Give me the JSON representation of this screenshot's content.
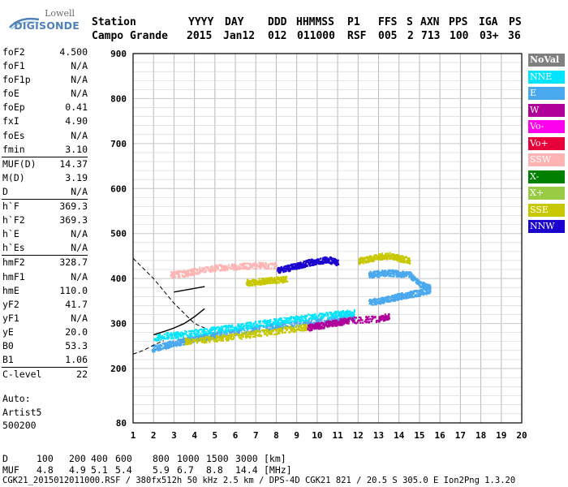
{
  "logo": {
    "line1": "Lowell",
    "line2": "DIGISONDE"
  },
  "header": {
    "labels": [
      "Station",
      "YYYY",
      "DAY",
      "DDD",
      "HHMMSS",
      "P1",
      "FFS",
      "S",
      "AXN",
      "PPS",
      "IGA",
      "PS"
    ],
    "values": [
      "Campo Grande",
      "2015",
      "Jan12",
      "012",
      "011000",
      "RSF",
      "005",
      "2",
      "713",
      "100",
      "03+",
      "36"
    ]
  },
  "params": [
    {
      "name": "foF2",
      "value": "4.500"
    },
    {
      "name": "foF1",
      "value": "N/A"
    },
    {
      "name": "foF1p",
      "value": "N/A"
    },
    {
      "name": "foE",
      "value": "N/A"
    },
    {
      "name": "foEp",
      "value": "0.41"
    },
    {
      "name": "fxI",
      "value": "4.90"
    },
    {
      "name": "foEs",
      "value": "N/A"
    },
    {
      "name": "fmin",
      "value": "3.10"
    },
    {
      "name": "MUF(D)",
      "value": "14.37"
    },
    {
      "name": "M(D)",
      "value": "3.19"
    },
    {
      "name": "D",
      "value": "N/A"
    },
    {
      "name": "h`F",
      "value": "369.3"
    },
    {
      "name": "h`F2",
      "value": "369.3"
    },
    {
      "name": "h`E",
      "value": "N/A"
    },
    {
      "name": "h`Es",
      "value": "N/A"
    },
    {
      "name": "hmF2",
      "value": "328.7"
    },
    {
      "name": "hmF1",
      "value": "N/A"
    },
    {
      "name": "hmE",
      "value": "110.0"
    },
    {
      "name": "yF2",
      "value": "41.7"
    },
    {
      "name": "yF1",
      "value": "N/A"
    },
    {
      "name": "yE",
      "value": "20.0"
    },
    {
      "name": "B0",
      "value": "53.3"
    },
    {
      "name": "B1",
      "value": "1.06"
    },
    {
      "name": "C-level",
      "value": "22"
    }
  ],
  "auto": {
    "line1": "Auto:",
    "line2": "Artist5",
    "line3": "500200"
  },
  "legend": [
    {
      "label": "NoVal",
      "color": "#808080"
    },
    {
      "label": "NNE",
      "color": "#00e5ff"
    },
    {
      "label": "E",
      "color": "#4aa8ee"
    },
    {
      "label": "W",
      "color": "#b0009a"
    },
    {
      "label": "Vo-",
      "color": "#ff00ee"
    },
    {
      "label": "Vo+",
      "color": "#e8003a"
    },
    {
      "label": "SSW",
      "color": "#ffb3b3"
    },
    {
      "label": "X-",
      "color": "#008000"
    },
    {
      "label": "X+",
      "color": "#99cc44"
    },
    {
      "label": "SSE",
      "color": "#c8c800"
    },
    {
      "label": "NNW",
      "color": "#1a00d0"
    }
  ],
  "footer": {
    "d_label": "D",
    "d_values": [
      "100",
      "200",
      "400",
      "600",
      "800",
      "1000",
      "1500",
      "3000"
    ],
    "d_unit": "[km]",
    "muf_label": "MUF",
    "muf_values": [
      "4.8",
      "4.9",
      "5.1",
      "5.4",
      "5.9",
      "6.7",
      "8.8",
      "14.4"
    ],
    "muf_unit": "[MHz]",
    "info": "CGK21_2015012011000.RSF / 380fx512h 50 kHz 2.5 km / DPS-4D CGK21 821 / 20.5 S 305.0 E Ion2Png 1.3.20"
  },
  "chart_data": {
    "type": "scatter",
    "xlim": [
      1,
      20
    ],
    "ylim": [
      80,
      900
    ],
    "x_ticks": [
      1,
      2,
      3,
      4,
      5,
      6,
      7,
      8,
      9,
      10,
      11,
      12,
      13,
      14,
      15,
      16,
      17,
      18,
      19,
      20
    ],
    "y_ticks": [
      80,
      200,
      300,
      400,
      500,
      600,
      700,
      800,
      900
    ],
    "grid": true,
    "series": [
      {
        "color": "#4aa8ee",
        "band": "F-low",
        "x": [
          1.9,
          2.5,
          3.0,
          3.5,
          4.0,
          4.5,
          5.0,
          6.0,
          7.0,
          8.0,
          9.0,
          10.0,
          11.0,
          11.8
        ],
        "y": [
          245,
          252,
          258,
          262,
          268,
          272,
          276,
          283,
          290,
          296,
          302,
          307,
          312,
          316
        ]
      },
      {
        "color": "#00e5ff",
        "band": "F-mid",
        "x": [
          2.0,
          3.0,
          4.0,
          5.0,
          6.0,
          7.0,
          8.0,
          9.0,
          10.0,
          11.0,
          11.8
        ],
        "y": [
          270,
          276,
          282,
          287,
          293,
          300,
          306,
          312,
          318,
          322,
          326
        ]
      },
      {
        "color": "#c8c800",
        "band": "F-low-sse",
        "x": [
          3.5,
          4.5,
          5.5,
          6.5,
          7.5,
          8.5,
          9.5
        ],
        "y": [
          262,
          266,
          270,
          276,
          282,
          288,
          294
        ]
      },
      {
        "color": "#b0009a",
        "band": "W-hi",
        "x": [
          9.5,
          10.0,
          10.5,
          11.0,
          11.5,
          13.0,
          13.5
        ],
        "y": [
          292,
          296,
          300,
          304,
          308,
          312,
          318
        ]
      },
      {
        "color": "#4aa8ee",
        "band": "E-upper",
        "x": [
          12.5,
          13.0,
          13.5,
          14.0,
          14.5,
          15.0,
          15.5
        ],
        "y": [
          348,
          352,
          356,
          362,
          366,
          370,
          376
        ]
      },
      {
        "color": "#c8c800",
        "band": "SSE-upper",
        "x": [
          12.0,
          12.5,
          13.0,
          13.5,
          14.0,
          14.5
        ],
        "y": [
          440,
          445,
          450,
          452,
          446,
          442
        ]
      },
      {
        "color": "#1a00d0",
        "band": "NNW",
        "x": [
          8.0,
          8.5,
          9.0,
          9.5,
          10.0,
          10.5,
          11.0
        ],
        "y": [
          420,
          424,
          430,
          436,
          440,
          444,
          436
        ]
      },
      {
        "color": "#4aa8ee",
        "band": "E-2nd",
        "x": [
          12.5,
          13.0,
          13.5,
          14.0,
          14.5,
          15.0,
          15.5
        ],
        "y": [
          410,
          412,
          414,
          412,
          410,
          388,
          382
        ]
      },
      {
        "color": "#ffb3b3",
        "band": "SSW-2nd",
        "x": [
          2.8,
          3.5,
          4.0,
          5.0,
          6.0,
          7.0,
          8.0
        ],
        "y": [
          410,
          412,
          418,
          425,
          428,
          430,
          430
        ]
      },
      {
        "color": "#c8c800",
        "band": "SSE-2nd",
        "x": [
          6.5,
          7.0,
          7.5,
          8.0,
          8.5
        ],
        "y": [
          392,
          394,
          396,
          398,
          400
        ]
      }
    ],
    "trace_o": {
      "x": [
        3.0,
        3.5,
        4.0,
        4.5
      ],
      "y": [
        370,
        374,
        378,
        382
      ]
    },
    "trace_low": {
      "x": [
        2.0,
        2.5,
        3.0,
        3.5,
        4.0,
        4.5
      ],
      "y": [
        275,
        282,
        290,
        300,
        315,
        333
      ]
    },
    "dashed_profile": {
      "x": [
        1.0,
        2.0,
        3.0,
        4.0,
        4.5
      ],
      "y": [
        445,
        400,
        345,
        300,
        290
      ]
    },
    "dashed_low": {
      "x": [
        1.0,
        1.5,
        2.0,
        2.5
      ],
      "y": [
        232,
        240,
        252,
        262
      ]
    }
  }
}
